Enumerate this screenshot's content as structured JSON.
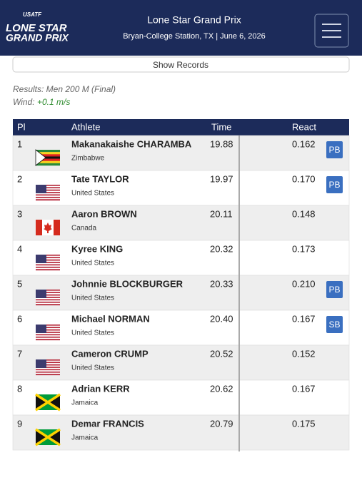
{
  "header": {
    "logo_top": "USATF",
    "logo_line1": "LONE STAR",
    "logo_line2": "GRAND PRIX",
    "title": "Lone Star Grand Prix",
    "subtitle": "Bryan-College Station, TX | June 6, 2026"
  },
  "show_records": "Show Records",
  "results_label": "Results: Men 200 M (Final)",
  "wind_label": "Wind:",
  "wind_value": "+0.1 m/s",
  "table": {
    "columns": [
      "Pl",
      "Athlete",
      "Time",
      "React"
    ],
    "rows": [
      {
        "place": "1",
        "name": "Makanakaishe CHARAMBA",
        "country": "Zimbabwe",
        "time": "19.88",
        "react": "0.162",
        "badge": "PB"
      },
      {
        "place": "2",
        "name": "Tate TAYLOR",
        "country": "United States",
        "time": "19.97",
        "react": "0.170",
        "badge": "PB"
      },
      {
        "place": "3",
        "name": "Aaron BROWN",
        "country": "Canada",
        "time": "20.11",
        "react": "0.148"
      },
      {
        "place": "4",
        "name": "Kyree KING",
        "country": "United States",
        "time": "20.32",
        "react": "0.173"
      },
      {
        "place": "5",
        "name": "Johnnie BLOCKBURGER",
        "country": "United States",
        "time": "20.33",
        "react": "0.210",
        "badge": "PB"
      },
      {
        "place": "6",
        "name": "Michael NORMAN",
        "country": "United States",
        "time": "20.40",
        "react": "0.167",
        "badge": "SB"
      },
      {
        "place": "7",
        "name": "Cameron CRUMP",
        "country": "United States",
        "time": "20.52",
        "react": "0.152"
      },
      {
        "place": "8",
        "name": "Adrian KERR",
        "country": "Jamaica",
        "time": "20.62",
        "react": "0.167"
      },
      {
        "place": "9",
        "name": "Demar FRANCIS",
        "country": "Jamaica",
        "time": "20.79",
        "react": "0.175"
      }
    ]
  }
}
